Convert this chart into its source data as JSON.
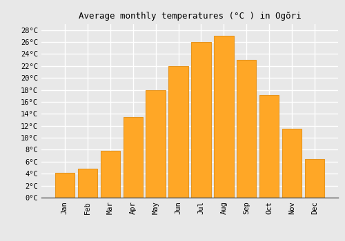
{
  "title": "Average monthly temperatures (°C ) in Ogŏri",
  "months": [
    "Jan",
    "Feb",
    "Mar",
    "Apr",
    "May",
    "Jun",
    "Jul",
    "Aug",
    "Sep",
    "Oct",
    "Nov",
    "Dec"
  ],
  "values": [
    4.1,
    4.8,
    7.8,
    13.5,
    18.0,
    22.0,
    26.0,
    27.0,
    23.0,
    17.2,
    11.5,
    6.4
  ],
  "bar_color": "#FFA726",
  "bar_edge_color": "#E69520",
  "ylim": [
    0,
    29
  ],
  "yticks": [
    0,
    2,
    4,
    6,
    8,
    10,
    12,
    14,
    16,
    18,
    20,
    22,
    24,
    26,
    28
  ],
  "background_color": "#e8e8e8",
  "plot_bg_color": "#e8e8e8",
  "grid_color": "#ffffff",
  "title_fontsize": 9,
  "tick_fontsize": 7.5,
  "font_family": "monospace"
}
